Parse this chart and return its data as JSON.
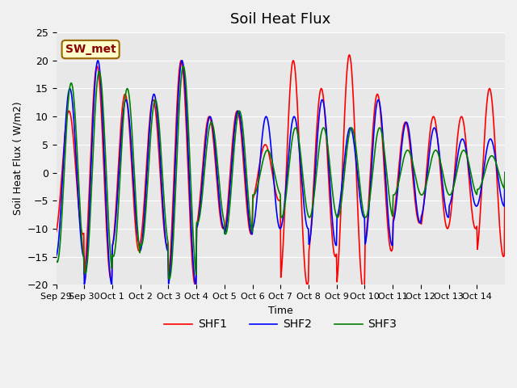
{
  "title": "Soil Heat Flux",
  "ylabel": "Soil Heat Flux ( W/m2)",
  "xlabel": "Time",
  "ylim": [
    -20,
    25
  ],
  "fig_bg_color": "#f0f0f0",
  "plot_bg_color": "#e8e8e8",
  "shf1_color": "red",
  "shf2_color": "blue",
  "shf3_color": "green",
  "legend_label1": "SHF1",
  "legend_label2": "SHF2",
  "legend_label3": "SHF3",
  "annotation_text": "SW_met",
  "annotation_bg": "#ffffcc",
  "annotation_border": "#996600",
  "x_tick_labels": [
    "Sep 29",
    "Sep 30",
    "Oct 1",
    "Oct 2",
    "Oct 3",
    "Oct 4",
    "Oct 5",
    "Oct 6",
    "Oct 7",
    "Oct 8",
    "Oct 9",
    "Oct 10",
    "Oct 11",
    "Oct 12",
    "Oct 13",
    "Oct 14"
  ],
  "yticks": [
    -20,
    -15,
    -10,
    -5,
    0,
    5,
    10,
    15,
    20,
    25
  ],
  "day_amps_shf1": [
    11,
    19,
    14,
    13,
    20,
    10,
    11,
    5,
    20,
    15,
    21,
    14,
    9,
    10,
    10,
    15
  ],
  "day_amps_shf2": [
    15,
    20,
    13,
    14,
    20,
    10,
    11,
    10,
    10,
    13,
    8,
    13,
    9,
    8,
    6,
    6
  ],
  "day_amps_shf3": [
    16,
    18,
    15,
    13,
    19,
    9,
    11,
    4,
    8,
    8,
    8,
    8,
    4,
    4,
    4,
    3
  ],
  "n_days": 16,
  "n_points_per_day": 48
}
